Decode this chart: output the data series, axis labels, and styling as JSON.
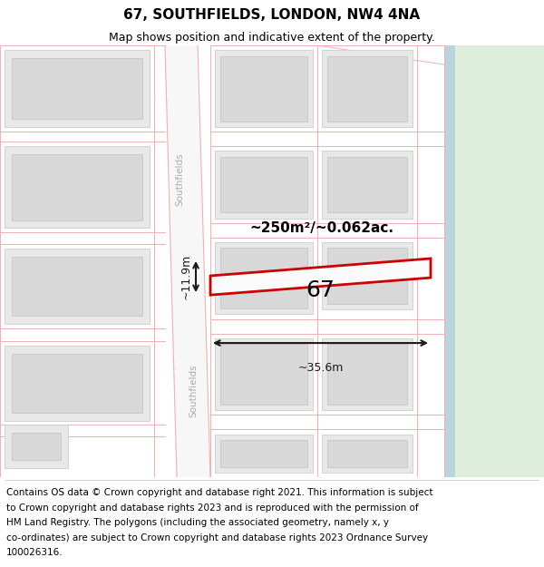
{
  "title": "67, SOUTHFIELDS, LONDON, NW4 4NA",
  "subtitle": "Map shows position and indicative extent of the property.",
  "footer_lines": [
    "Contains OS data © Crown copyright and database right 2021. This information is subject",
    "to Crown copyright and database rights 2023 and is reproduced with the permission of",
    "HM Land Registry. The polygons (including the associated geometry, namely x, y",
    "co-ordinates) are subject to Crown copyright and database rights 2023 Ordnance Survey",
    "100026316."
  ],
  "area_label": "~250m²/~0.062ac.",
  "width_label": "~35.6m",
  "height_label": "~11.9m",
  "property_number": "67",
  "map_bg": "#f2f0f0",
  "green_area_color": "#ddeedd",
  "blue_strip_color": "#b8d4dd",
  "road_color": "#f8f7f7",
  "road_stripe_color": "#f0b0b0",
  "block_fill": "#e8e8e8",
  "block_inner_fill": "#d8d8d8",
  "block_edge": "#cccccc",
  "property_fill": "#fafafa",
  "property_edge": "#cc0000",
  "dim_color": "#1a1a1a",
  "road_label_color": "#aaaaaa",
  "title_fontsize": 11,
  "subtitle_fontsize": 9,
  "footer_fontsize": 7.5,
  "area_fontsize": 11,
  "prop_num_fontsize": 18,
  "dim_fontsize": 9,
  "road_fontsize": 7.5
}
